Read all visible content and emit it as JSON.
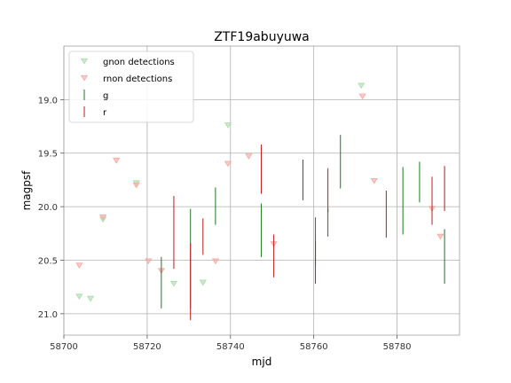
{
  "chart_data": {
    "type": "scatter",
    "title": "ZTF19abuyuwa",
    "xlabel": "mjd",
    "ylabel": "magpsf",
    "xlim": [
      58700,
      58795
    ],
    "ylim": [
      21.2,
      18.5
    ],
    "y_inverted": true,
    "grid": true,
    "legend_placement": "top-left",
    "x_ticks": [
      58700,
      58720,
      58740,
      58760,
      58780
    ],
    "y_ticks": [
      19.0,
      19.5,
      20.0,
      20.5,
      21.0
    ],
    "x_tick_labels": [
      "58700",
      "58720",
      "58740",
      "58760",
      "58780"
    ],
    "y_tick_labels": [
      "19.0",
      "19.5",
      "20.0",
      "20.5",
      "21.0"
    ],
    "colors": {
      "gnon": "#a8dca8",
      "rnon": "#f5a8a0",
      "g": "#1a7a1a",
      "r": "#c01818",
      "grid": "#b0b0b0",
      "spine": "#a0a0a0"
    },
    "legend": [
      {
        "label": "gnon detections",
        "kind": "triangle",
        "color_key": "gnon"
      },
      {
        "label": "rnon detections",
        "kind": "triangle",
        "color_key": "rnon"
      },
      {
        "label": "g",
        "kind": "errorbar",
        "color_key": "g"
      },
      {
        "label": "r",
        "kind": "errorbar",
        "color_key": "r"
      }
    ],
    "series": [
      {
        "name": "gnon detections",
        "kind": "triangle",
        "color_key": "gnon",
        "points": [
          {
            "x": 58703.7,
            "y": 20.84
          },
          {
            "x": 58706.4,
            "y": 20.86
          },
          {
            "x": 58709.4,
            "y": 20.12
          },
          {
            "x": 58717.4,
            "y": 19.78
          },
          {
            "x": 58726.4,
            "y": 20.72
          },
          {
            "x": 58733.4,
            "y": 20.71
          },
          {
            "x": 58739.4,
            "y": 19.24
          },
          {
            "x": 58771.4,
            "y": 18.87
          }
        ]
      },
      {
        "name": "rnon detections",
        "kind": "triangle",
        "color_key": "rnon",
        "points": [
          {
            "x": 58703.7,
            "y": 20.55
          },
          {
            "x": 58709.4,
            "y": 20.1
          },
          {
            "x": 58712.6,
            "y": 19.57
          },
          {
            "x": 58717.4,
            "y": 19.8
          },
          {
            "x": 58720.3,
            "y": 20.51
          },
          {
            "x": 58723.4,
            "y": 20.6
          },
          {
            "x": 58736.4,
            "y": 20.51
          },
          {
            "x": 58739.4,
            "y": 19.6
          },
          {
            "x": 58744.4,
            "y": 19.53
          },
          {
            "x": 58750.4,
            "y": 20.35
          },
          {
            "x": 58771.7,
            "y": 18.97
          },
          {
            "x": 58774.5,
            "y": 19.76
          },
          {
            "x": 58788.4,
            "y": 20.02
          },
          {
            "x": 58790.4,
            "y": 20.28
          }
        ]
      },
      {
        "name": "g",
        "kind": "errorbar",
        "color_key": "g",
        "points": [
          {
            "x": 58723.4,
            "lo": 20.47,
            "hi": 20.95
          },
          {
            "x": 58730.4,
            "lo": 20.02,
            "hi": 20.95
          },
          {
            "x": 58736.4,
            "lo": 19.82,
            "hi": 20.17
          },
          {
            "x": 58747.4,
            "lo": 19.97,
            "hi": 20.47
          },
          {
            "x": 58760.4,
            "lo": 20.1,
            "hi": 20.55
          },
          {
            "x": 58763.4,
            "lo": 20.02,
            "hi": 20.28
          },
          {
            "x": 58766.4,
            "lo": 19.33,
            "hi": 19.83
          },
          {
            "x": 58781.4,
            "lo": 19.63,
            "hi": 20.26
          },
          {
            "x": 58785.4,
            "lo": 19.58,
            "hi": 19.96
          },
          {
            "x": 58791.4,
            "lo": 20.21,
            "hi": 20.72
          }
        ]
      },
      {
        "name": "r",
        "kind": "errorbar",
        "color_key": "r",
        "points": [
          {
            "x": 58726.4,
            "lo": 19.9,
            "hi": 20.58
          },
          {
            "x": 58730.4,
            "lo": 20.34,
            "hi": 21.06
          },
          {
            "x": 58733.4,
            "lo": 20.11,
            "hi": 20.45
          },
          {
            "x": 58747.4,
            "lo": 19.42,
            "hi": 19.88
          },
          {
            "x": 58750.4,
            "lo": 20.26,
            "hi": 20.66
          },
          {
            "x": 58757.4,
            "lo": 19.56,
            "hi": 19.94
          },
          {
            "x": 58760.4,
            "lo": 20.32,
            "hi": 20.72
          },
          {
            "x": 58763.4,
            "lo": 19.64,
            "hi": 20.05
          },
          {
            "x": 58777.4,
            "lo": 19.85,
            "hi": 20.29
          },
          {
            "x": 58788.4,
            "lo": 19.72,
            "hi": 20.17
          },
          {
            "x": 58791.4,
            "lo": 19.62,
            "hi": 20.04
          }
        ]
      }
    ]
  }
}
